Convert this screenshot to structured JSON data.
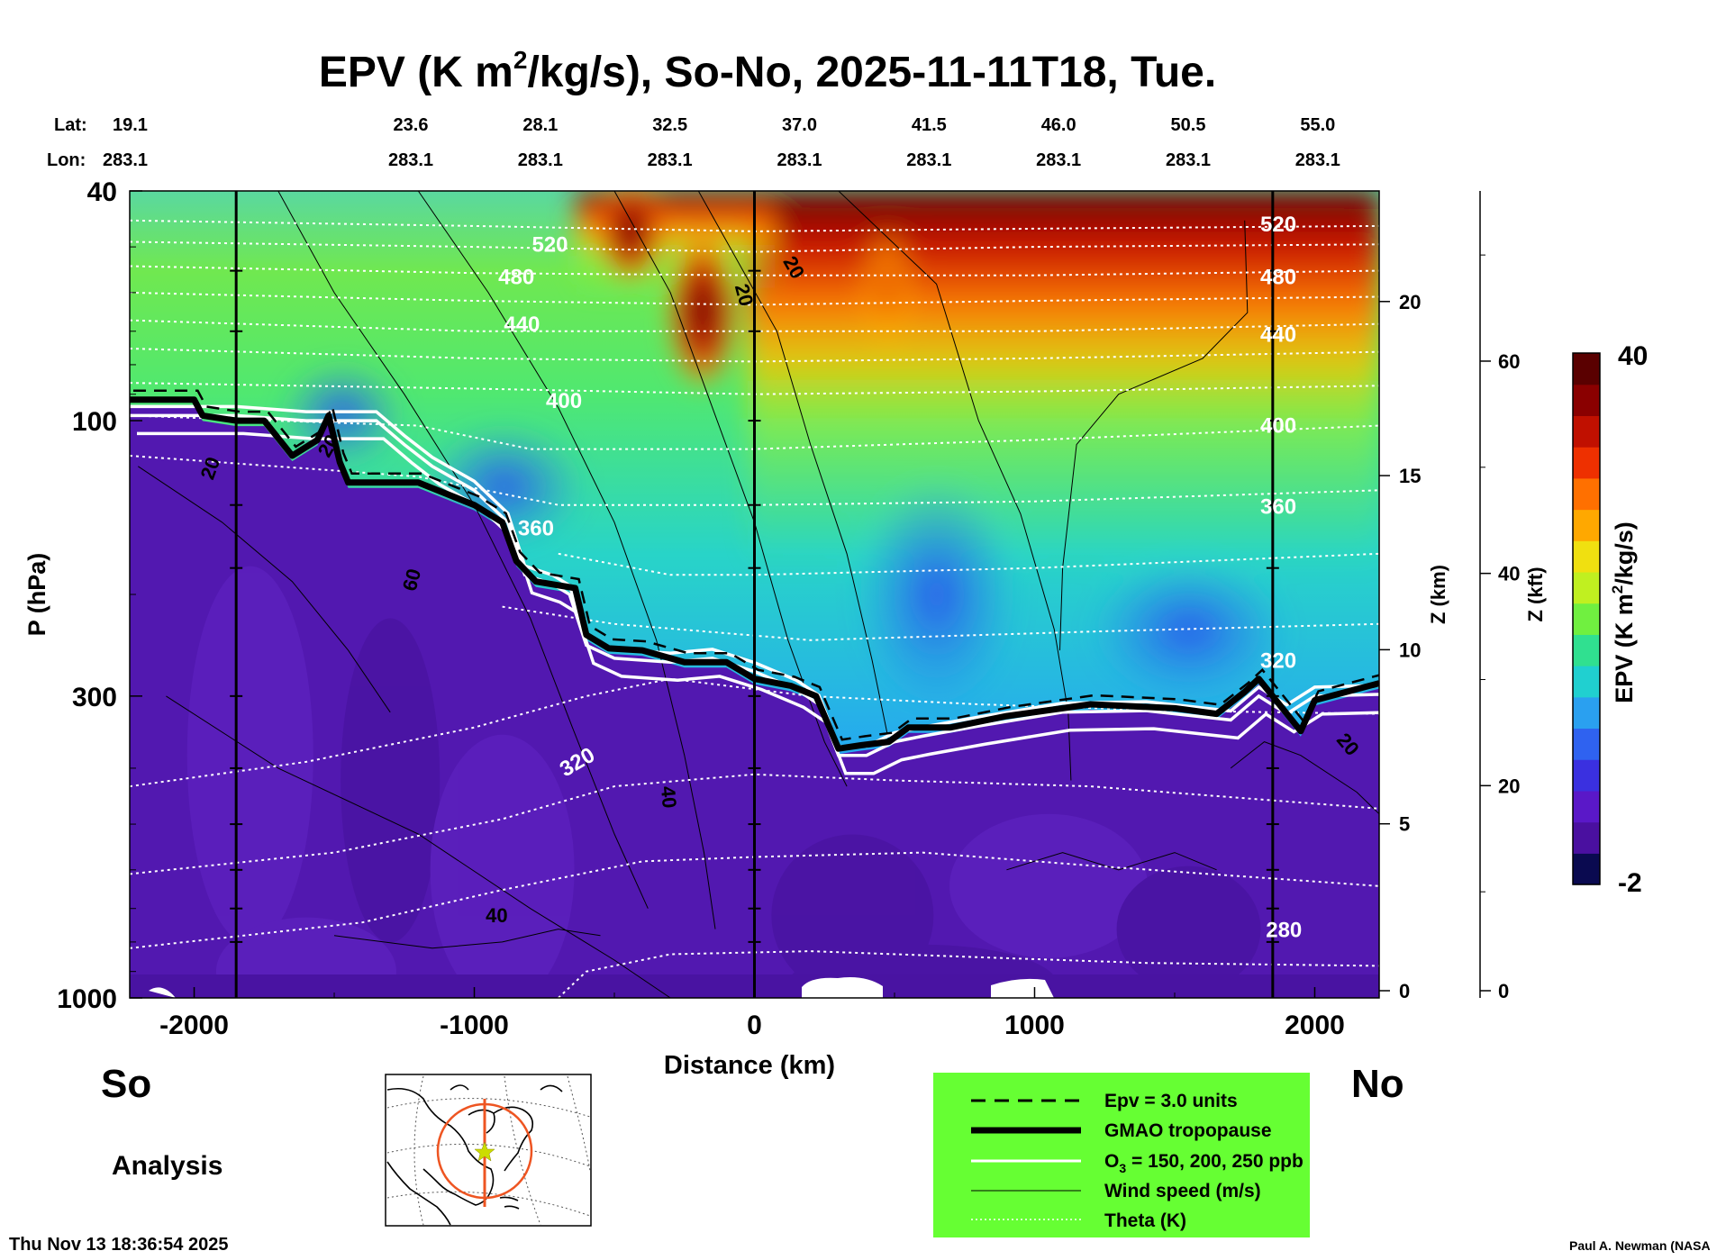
{
  "chart_data": {
    "type": "heatmap",
    "title_prefix": "EPV (K m",
    "title_sup": "2",
    "title_suffix": "/kg/s), So-No, 2025-11-11T18, Tue.",
    "xlabel": "Distance (km)",
    "ylabel": "P (hPa)",
    "xlim": [
      -2230,
      2230
    ],
    "xticks": [
      -2000,
      -1000,
      0,
      1000,
      2000
    ],
    "xtick_labels": [
      "-2000",
      "-1000",
      "0",
      "1000",
      "2000"
    ],
    "ylim": [
      1000,
      40
    ],
    "yticks": [
      40,
      100,
      300,
      1000
    ],
    "ytick_labels": [
      "40",
      "100",
      "300",
      "1000"
    ],
    "z_km_label": "Z (km)",
    "z_km_ticks": [
      0,
      5,
      10,
      15,
      20
    ],
    "z_km_tick_labels": [
      "0",
      "5",
      "10",
      "15",
      "20"
    ],
    "z_kft_label": "Z (kft)",
    "z_kft_ticks": [
      0,
      20,
      40,
      60
    ],
    "z_kft_tick_labels": [
      "0",
      "20",
      "40",
      "60"
    ],
    "lat_label": "Lat:",
    "lon_label": "Lon:",
    "lat_values": [
      "19.1",
      "23.6",
      "28.1",
      "32.5",
      "37.0",
      "41.5",
      "46.0",
      "50.5",
      "55.0"
    ],
    "lon_values": [
      "283.1",
      "283.1",
      "283.1",
      "283.1",
      "283.1",
      "283.1",
      "283.1",
      "283.1",
      "283.1"
    ],
    "vertical_markers_km": [
      -1850,
      0,
      1850
    ],
    "colorbar": {
      "label_prefix": "EPV (K m",
      "label_sup": "2",
      "label_suffix": "/kg/s)",
      "min": -2,
      "max": 40,
      "min_label": "-2",
      "max_label": "40",
      "colors": [
        "#0a0a50",
        "#4a10a0",
        "#5a18c8",
        "#3a30e0",
        "#2f62f0",
        "#2aa0f0",
        "#20d0d0",
        "#30e090",
        "#70f040",
        "#c0f020",
        "#f0e010",
        "#ffa800",
        "#ff7000",
        "#ee3000",
        "#c01000",
        "#8a0000",
        "#5a0000"
      ]
    },
    "theta_labels": [
      "520",
      "480",
      "440",
      "400",
      "360",
      "320",
      "280",
      "520",
      "480",
      "440",
      "400",
      "360",
      "320"
    ],
    "wind_labels": [
      "20",
      "20",
      "20",
      "40",
      "60",
      "40",
      "20",
      "20"
    ],
    "tropopause": [
      {
        "x": -2230,
        "p": 92
      },
      {
        "x": -2000,
        "p": 92
      },
      {
        "x": -1970,
        "p": 98
      },
      {
        "x": -1850,
        "p": 100
      },
      {
        "x": -1750,
        "p": 100
      },
      {
        "x": -1650,
        "p": 115
      },
      {
        "x": -1560,
        "p": 108
      },
      {
        "x": -1520,
        "p": 98
      },
      {
        "x": -1480,
        "p": 118
      },
      {
        "x": -1450,
        "p": 128
      },
      {
        "x": -1200,
        "p": 128
      },
      {
        "x": -1000,
        "p": 140
      },
      {
        "x": -900,
        "p": 150
      },
      {
        "x": -850,
        "p": 175
      },
      {
        "x": -780,
        "p": 190
      },
      {
        "x": -640,
        "p": 195
      },
      {
        "x": -600,
        "p": 235
      },
      {
        "x": -520,
        "p": 248
      },
      {
        "x": -400,
        "p": 250
      },
      {
        "x": -250,
        "p": 262
      },
      {
        "x": -100,
        "p": 262
      },
      {
        "x": 0,
        "p": 280
      },
      {
        "x": 130,
        "p": 288
      },
      {
        "x": 220,
        "p": 300
      },
      {
        "x": 300,
        "p": 370
      },
      {
        "x": 380,
        "p": 365
      },
      {
        "x": 480,
        "p": 360
      },
      {
        "x": 550,
        "p": 340
      },
      {
        "x": 700,
        "p": 340
      },
      {
        "x": 900,
        "p": 325
      },
      {
        "x": 1200,
        "p": 310
      },
      {
        "x": 1500,
        "p": 315
      },
      {
        "x": 1650,
        "p": 322
      },
      {
        "x": 1750,
        "p": 295
      },
      {
        "x": 1800,
        "p": 280
      },
      {
        "x": 1850,
        "p": 300
      },
      {
        "x": 1950,
        "p": 345
      },
      {
        "x": 2000,
        "p": 305
      },
      {
        "x": 2230,
        "p": 285
      }
    ],
    "ozone_200ppb": [
      {
        "x": -2230,
        "p": 98
      },
      {
        "x": -1850,
        "p": 98
      },
      {
        "x": -1600,
        "p": 100
      },
      {
        "x": -1500,
        "p": 100
      },
      {
        "x": -1350,
        "p": 100
      },
      {
        "x": -1250,
        "p": 110
      },
      {
        "x": -1150,
        "p": 120
      },
      {
        "x": -1000,
        "p": 132
      },
      {
        "x": -880,
        "p": 150
      },
      {
        "x": -820,
        "p": 185
      },
      {
        "x": -720,
        "p": 192
      },
      {
        "x": -660,
        "p": 200
      },
      {
        "x": -600,
        "p": 245
      },
      {
        "x": -500,
        "p": 258
      },
      {
        "x": -300,
        "p": 262
      },
      {
        "x": -150,
        "p": 258
      },
      {
        "x": 0,
        "p": 272
      },
      {
        "x": 150,
        "p": 292
      },
      {
        "x": 230,
        "p": 310
      },
      {
        "x": 300,
        "p": 380
      },
      {
        "x": 400,
        "p": 380
      },
      {
        "x": 500,
        "p": 360
      },
      {
        "x": 600,
        "p": 352
      },
      {
        "x": 800,
        "p": 338
      },
      {
        "x": 1100,
        "p": 320
      },
      {
        "x": 1400,
        "p": 318
      },
      {
        "x": 1700,
        "p": 330
      },
      {
        "x": 1800,
        "p": 300
      },
      {
        "x": 1900,
        "p": 322
      },
      {
        "x": 2000,
        "p": 300
      },
      {
        "x": 2230,
        "p": 298
      }
    ],
    "legend_entries": [
      "Epv = 3.0 units",
      "GMAO tropopause",
      "O3 = 150, 200, 250 ppb",
      "Wind speed (m/s)",
      "Theta (K)"
    ],
    "legend_ozone_prefix": "O",
    "legend_ozone_sub": "3",
    "legend_ozone_suffix": " = 150, 200, 250 ppb"
  },
  "footer": {
    "south_label": "So",
    "north_label": "No",
    "analysis_label": "Analysis",
    "timestamp": "Thu Nov 13 18:36:54 2025",
    "credit": "Paul A. Newman (NASA"
  },
  "colors": {
    "legend_bg": "#66ff33",
    "inset_circle": "#ee5522",
    "inset_star": "#ccdd00",
    "tropo_bottom": "#5218b0"
  }
}
